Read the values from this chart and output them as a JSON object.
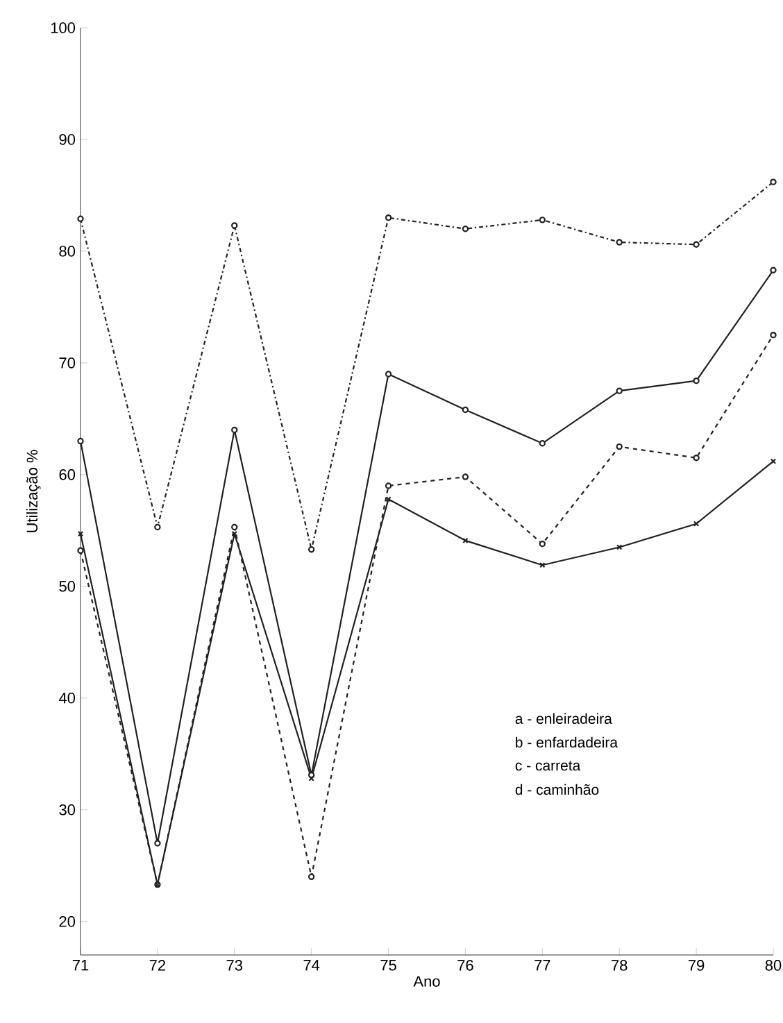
{
  "chart_data": {
    "type": "line",
    "xlabel": "Ano",
    "ylabel": "Utilização %",
    "categories": [
      "71",
      "72",
      "73",
      "74",
      "75",
      "76",
      "77",
      "78",
      "79",
      "80"
    ],
    "series": [
      {
        "color": "#222222",
        "marker": "circle",
        "line_style": "dashdot",
        "values": [
          82.9,
          55.3,
          82.3,
          53.3,
          83,
          82,
          82.8,
          80.8,
          80.6,
          86.2
        ]
      },
      {
        "color": "#222222",
        "marker": "circle",
        "line_style": "solid",
        "values": [
          63,
          27,
          64,
          33.1,
          69,
          65.8,
          62.8,
          67.5,
          68.4,
          78.3
        ]
      },
      {
        "color": "#222222",
        "marker": "circle",
        "line_style": "dashed",
        "values": [
          53.2,
          23.3,
          55.3,
          24,
          59,
          59.8,
          53.8,
          62.5,
          61.5,
          72.5
        ]
      },
      {
        "color": "#222222",
        "marker": "cross",
        "line_style": "solid",
        "values": [
          54.7,
          23.3,
          54.7,
          32.8,
          57.8,
          54.1,
          51.9,
          53.5,
          55.6,
          61.2
        ]
      }
    ],
    "ylim": [
      17,
      100
    ],
    "yticks": [
      20,
      30,
      40,
      50,
      60,
      70,
      80,
      90,
      100
    ],
    "grid": false,
    "annotations": [
      "a - enleiradeira",
      "b - enfardadeira",
      "c - carreta",
      "d - caminhão"
    ]
  }
}
